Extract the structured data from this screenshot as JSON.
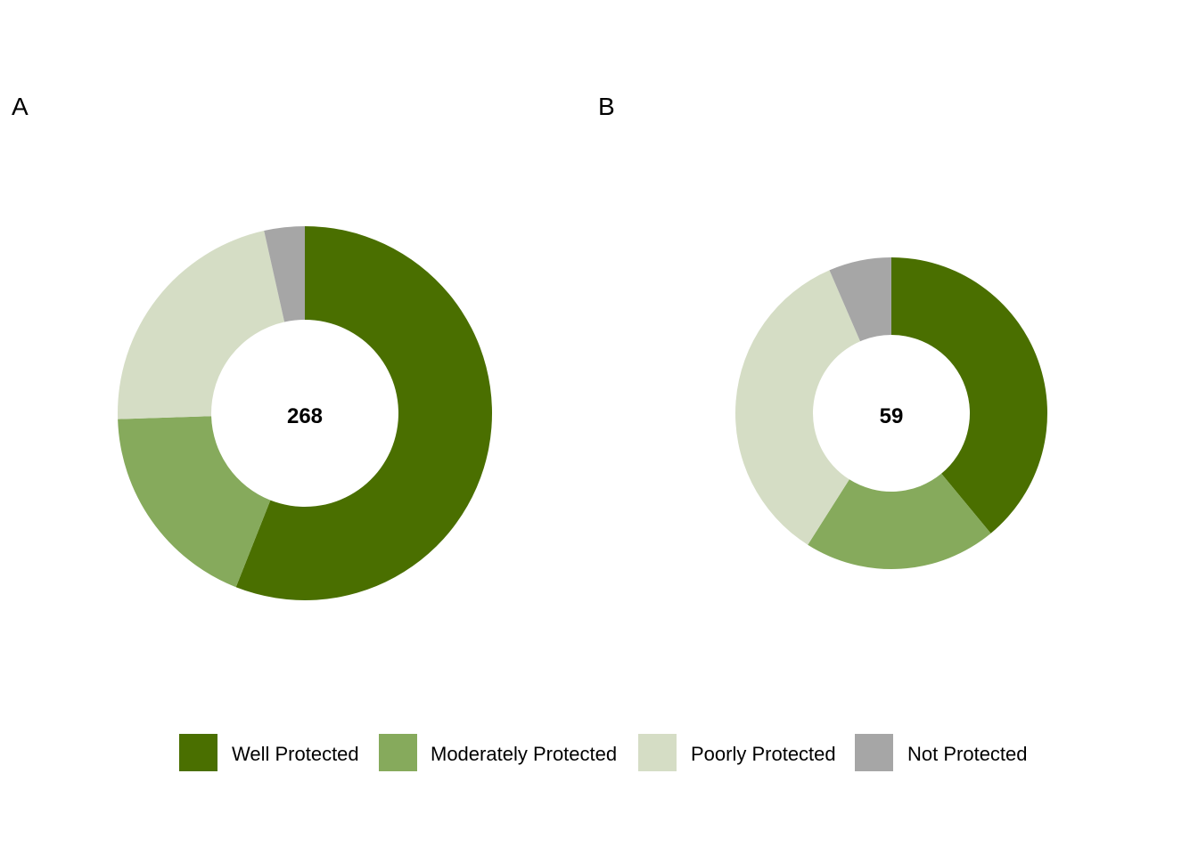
{
  "chart_data": [
    {
      "type": "pie",
      "panel_label": "A",
      "center_label": "268",
      "categories": [
        "Well Protected",
        "Moderately Protected",
        "Poorly Protected",
        "Not Protected"
      ],
      "values": [
        56,
        18.5,
        22,
        3.5
      ],
      "colors": [
        "#4a6f00",
        "#86aa5c",
        "#d5ddc5",
        "#a6a6a6"
      ]
    },
    {
      "type": "pie",
      "panel_label": "B",
      "center_label": "59",
      "categories": [
        "Well Protected",
        "Moderately Protected",
        "Poorly Protected",
        "Not Protected"
      ],
      "values": [
        39,
        20,
        34.5,
        6.5
      ],
      "colors": [
        "#4a6f00",
        "#86aa5c",
        "#d5ddc5",
        "#a6a6a6"
      ]
    }
  ],
  "legend": {
    "placement": "bottom",
    "items": [
      {
        "label": "Well Protected",
        "color": "#4a6f00"
      },
      {
        "label": "Moderately Protected",
        "color": "#86aa5c"
      },
      {
        "label": "Poorly Protected",
        "color": "#d5ddc5"
      },
      {
        "label": "Not Protected",
        "color": "#a6a6a6"
      }
    ]
  }
}
